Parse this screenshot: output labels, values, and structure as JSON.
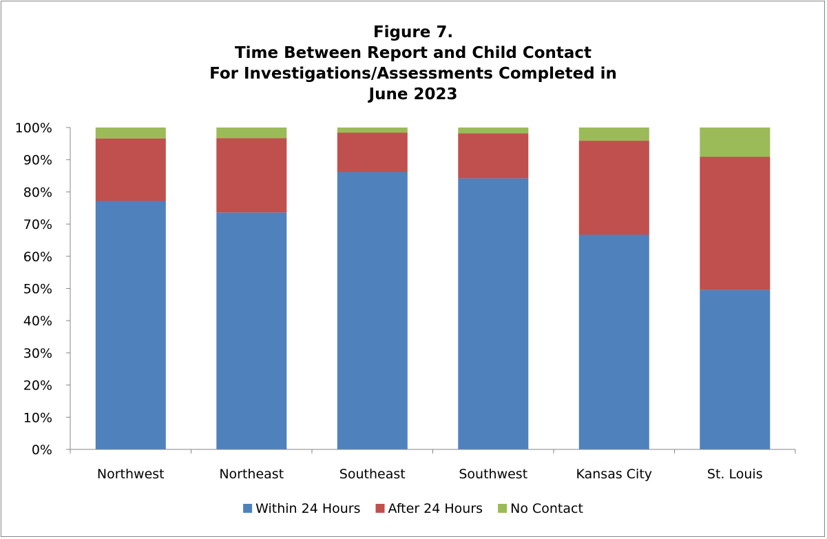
{
  "chart_data": {
    "type": "bar",
    "stacked": true,
    "percent_stacked": true,
    "title_lines": [
      "Figure 7.",
      "Time Between Report and Child Contact",
      "For Investigations/Assessments Completed in",
      "June 2023"
    ],
    "xlabel": "",
    "ylabel": "",
    "ylim": [
      0,
      100
    ],
    "y_ticks": [
      "0%",
      "10%",
      "20%",
      "30%",
      "40%",
      "50%",
      "60%",
      "70%",
      "80%",
      "90%",
      "100%"
    ],
    "categories": [
      "Northwest",
      "Northeast",
      "Southeast",
      "Southwest",
      "Kansas City",
      "St. Louis"
    ],
    "series": [
      {
        "name": "Within 24 Hours",
        "color": "#4f81bd",
        "values": [
          77.2,
          73.6,
          86.2,
          84.2,
          66.7,
          49.5
        ]
      },
      {
        "name": "After 24 Hours",
        "color": "#c0504d",
        "values": [
          19.4,
          23.1,
          12.2,
          14.0,
          29.2,
          41.4
        ]
      },
      {
        "name": "No Contact",
        "color": "#9bbb59",
        "values": [
          3.4,
          3.3,
          1.6,
          1.8,
          4.1,
          9.1
        ]
      }
    ],
    "grid": false,
    "legend_position": "bottom"
  }
}
